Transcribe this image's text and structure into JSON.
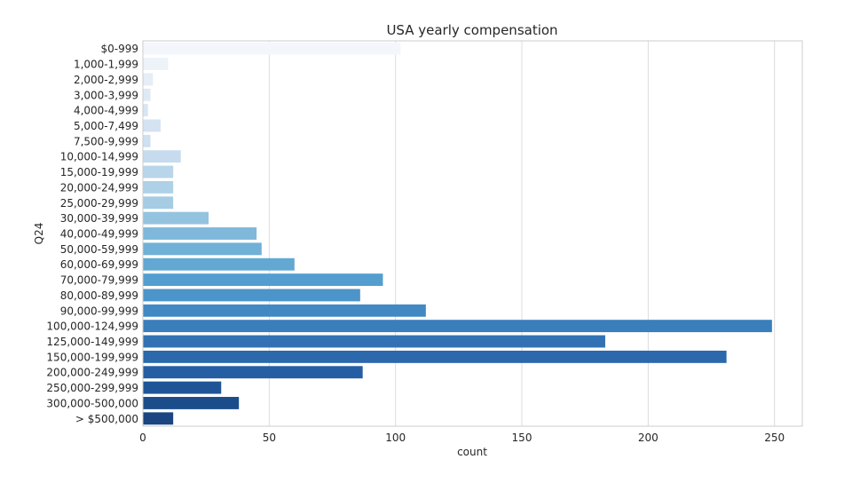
{
  "chart_data": {
    "type": "bar",
    "orientation": "horizontal",
    "title": "USA yearly compensation",
    "xlabel": "count",
    "ylabel": "Q24",
    "xlim": [
      0,
      261
    ],
    "xticks": [
      0,
      50,
      100,
      150,
      200,
      250
    ],
    "grid": true,
    "categories": [
      "$0-999",
      "1,000-1,999",
      "2,000-2,999",
      "3,000-3,999",
      "4,000-4,999",
      "5,000-7,499",
      "7,500-9,999",
      "10,000-14,999",
      "15,000-19,999",
      "20,000-24,999",
      "25,000-29,999",
      "30,000-39,999",
      "40,000-49,999",
      "50,000-59,999",
      "60,000-69,999",
      "70,000-79,999",
      "80,000-89,999",
      "90,000-99,999",
      "100,000-124,999",
      "125,000-149,999",
      "150,000-199,999",
      "200,000-249,999",
      "250,000-299,999",
      "300,000-500,000",
      "> $500,000"
    ],
    "values": [
      102,
      10,
      4,
      3,
      2,
      7,
      3,
      15,
      12,
      12,
      12,
      26,
      45,
      47,
      60,
      95,
      86,
      112,
      249,
      183,
      231,
      87,
      31,
      38,
      12
    ],
    "colors": [
      "#f3f7fc",
      "#eef3f9",
      "#e6edf6",
      "#dfe9f4",
      "#d8e5f3",
      "#d4e2f2",
      "#cee0f1",
      "#c6dbee",
      "#b9d5ea",
      "#afd1e7",
      "#a5cce3",
      "#93c3df",
      "#7fb8da",
      "#71b0d7",
      "#62a8d3",
      "#549ecf",
      "#4c94c9",
      "#4289c3",
      "#3a7ebc",
      "#3272b4",
      "#2b68ac",
      "#265ea3",
      "#1f5597",
      "#1c4d8b",
      "#1a4580"
    ]
  }
}
